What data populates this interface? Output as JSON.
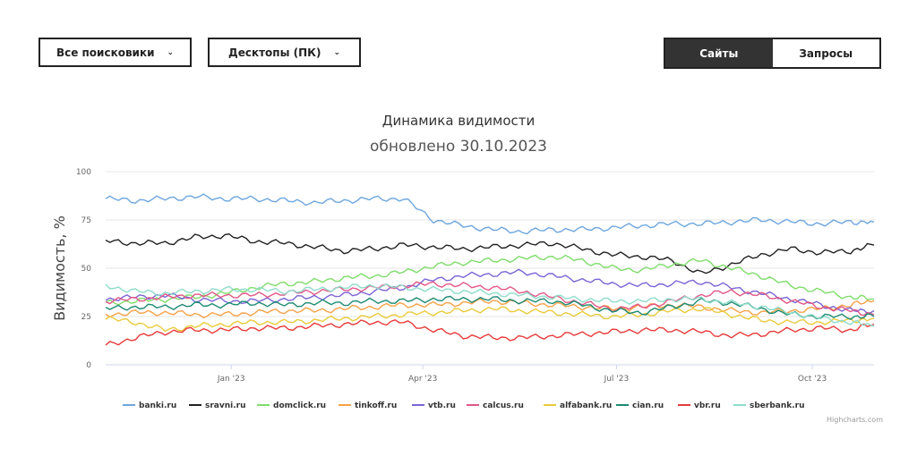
{
  "controls": {
    "engine_select": "Все поисковики",
    "device_select": "Десктопы (ПК)",
    "tab_sites": "Сайты",
    "tab_queries": "Запросы"
  },
  "credits": "Highcharts.com",
  "chart_data": {
    "type": "line",
    "title": "Динамика видимости",
    "subtitle": "обновлено 30.10.2023",
    "ylabel": "Видимость, %",
    "ylim": [
      0,
      100
    ],
    "yticks": [
      0,
      25,
      50,
      75,
      100
    ],
    "xlim": [
      "2022-11-03",
      "2023-10-30"
    ],
    "xticks": [
      {
        "date": "2023-01-01",
        "label": "Jan '23"
      },
      {
        "date": "2023-04-01",
        "label": "Apr '23"
      },
      {
        "date": "2023-07-01",
        "label": "Jul '23"
      },
      {
        "date": "2023-10-01",
        "label": "Oct '23"
      }
    ],
    "grid": true,
    "legend": "bottom",
    "x": [
      "2022-11-03",
      "2022-11-17",
      "2022-12-01",
      "2022-12-15",
      "2022-12-29",
      "2023-01-12",
      "2023-01-26",
      "2023-02-09",
      "2023-02-23",
      "2023-03-09",
      "2023-03-23",
      "2023-04-06",
      "2023-04-20",
      "2023-05-04",
      "2023-05-18",
      "2023-06-01",
      "2023-06-15",
      "2023-06-29",
      "2023-07-13",
      "2023-07-27",
      "2023-08-10",
      "2023-08-24",
      "2023-09-07",
      "2023-09-21",
      "2023-10-05",
      "2023-10-19",
      "2023-10-30"
    ],
    "series": [
      {
        "name": "banki.ru",
        "color": "#6ea6de",
        "values": [
          86,
          85,
          86,
          87,
          86,
          86,
          85,
          84,
          85,
          86,
          86,
          75,
          72,
          70,
          69,
          70,
          70,
          71,
          72,
          73,
          73,
          74,
          75,
          74,
          73,
          74,
          74
        ]
      },
      {
        "name": "sravni.ru",
        "color": "#222222",
        "values": [
          64,
          63,
          63,
          66,
          67,
          64,
          63,
          61,
          59,
          60,
          62,
          61,
          60,
          61,
          62,
          63,
          60,
          57,
          56,
          54,
          47,
          52,
          57,
          60,
          58,
          59,
          62
        ]
      },
      {
        "name": "domclick.ru",
        "color": "#7fdc6b",
        "values": [
          32,
          33,
          34,
          35,
          37,
          40,
          42,
          43,
          45,
          46,
          48,
          51,
          53,
          54,
          55,
          56,
          54,
          50,
          49,
          52,
          54,
          50,
          46,
          41,
          38,
          35,
          34
        ]
      },
      {
        "name": "tinkoff.ru",
        "color": "#f5a248",
        "values": [
          26,
          27,
          27,
          26,
          26,
          27,
          28,
          28,
          29,
          30,
          31,
          31,
          32,
          33,
          32,
          31,
          30,
          29,
          30,
          31,
          30,
          28,
          27,
          28,
          29,
          31,
          33
        ]
      },
      {
        "name": "vtb.ru",
        "color": "#7b64d6",
        "values": [
          34,
          35,
          36,
          34,
          33,
          33,
          34,
          35,
          36,
          38,
          40,
          44,
          46,
          47,
          48,
          46,
          44,
          42,
          41,
          42,
          43,
          40,
          37,
          34,
          31,
          28,
          28
        ]
      },
      {
        "name": "calcus.ru",
        "color": "#e15786",
        "values": [
          33,
          34,
          35,
          36,
          36,
          36,
          37,
          38,
          39,
          40,
          41,
          42,
          41,
          40,
          38,
          35,
          32,
          29,
          30,
          33,
          36,
          38,
          36,
          33,
          30,
          28,
          26
        ]
      },
      {
        "name": "alfabank.ru",
        "color": "#e9cb3c",
        "values": [
          24,
          22,
          18,
          20,
          21,
          22,
          22,
          23,
          24,
          25,
          26,
          27,
          28,
          29,
          28,
          27,
          26,
          25,
          26,
          28,
          29,
          26,
          23,
          22,
          22,
          23,
          24
        ]
      },
      {
        "name": "cian.ru",
        "color": "#1d8a72",
        "values": [
          29,
          30,
          30,
          31,
          31,
          32,
          31,
          32,
          32,
          33,
          33,
          34,
          34,
          34,
          33,
          33,
          31,
          28,
          27,
          30,
          33,
          32,
          29,
          26,
          25,
          25,
          25
        ]
      },
      {
        "name": "vbr.ru",
        "color": "#e63a3a",
        "values": [
          10,
          14,
          17,
          18,
          18,
          19,
          19,
          20,
          21,
          22,
          22,
          18,
          15,
          14,
          14,
          15,
          16,
          17,
          18,
          18,
          17,
          15,
          16,
          18,
          19,
          18,
          21
        ]
      },
      {
        "name": "sberbank.ru",
        "color": "#8edcca",
        "values": [
          41,
          38,
          37,
          38,
          39,
          39,
          38,
          39,
          40,
          41,
          40,
          39,
          38,
          37,
          36,
          35,
          34,
          33,
          33,
          34,
          34,
          32,
          30,
          27,
          24,
          22,
          20
        ]
      }
    ]
  }
}
